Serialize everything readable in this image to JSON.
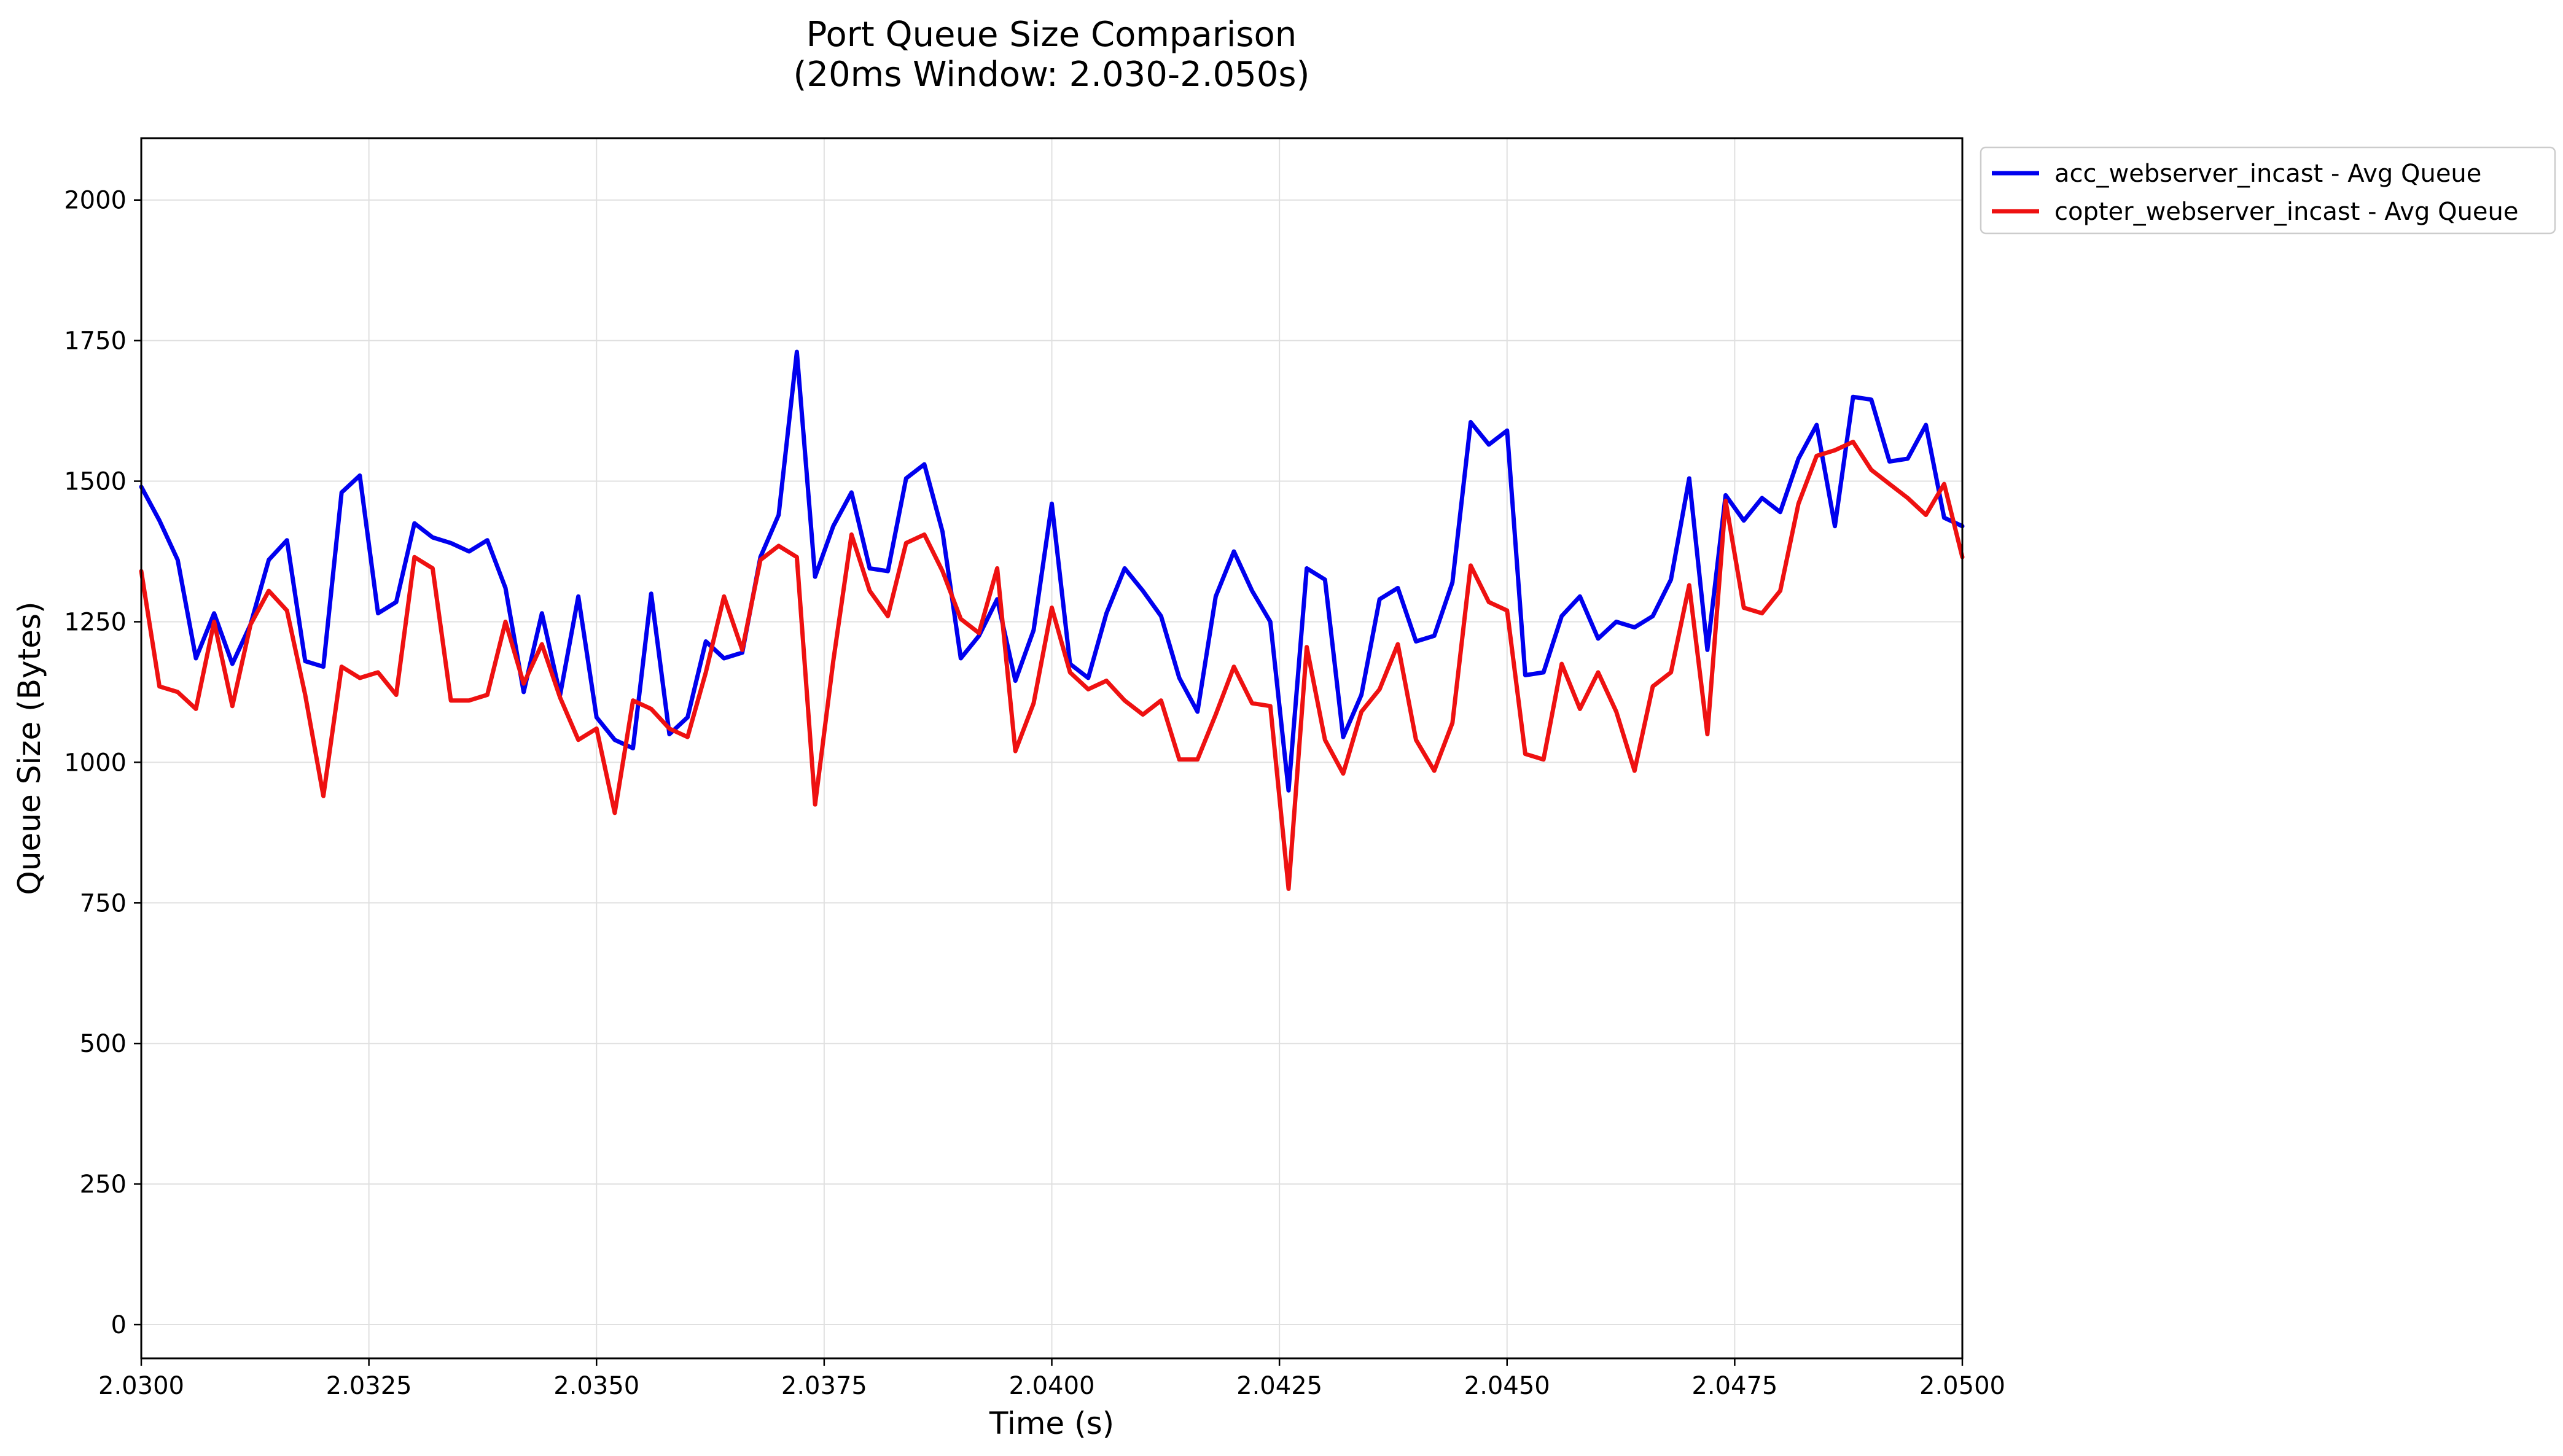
{
  "chart_data": {
    "type": "line",
    "title": "Port Queue Size Comparison",
    "subtitle": "(20ms Window: 2.030-2.050s)",
    "xlabel": "Time (s)",
    "ylabel": "Queue Size (Bytes)",
    "xlim": [
      2.03,
      2.05
    ],
    "ylim": [
      -60,
      2110
    ],
    "x_ticks": [
      "2.0300",
      "2.0325",
      "2.0350",
      "2.0375",
      "2.0400",
      "2.0425",
      "2.0450",
      "2.0475",
      "2.0500"
    ],
    "y_ticks": [
      "0",
      "250",
      "500",
      "750",
      "1000",
      "1250",
      "1500",
      "1750",
      "2000"
    ],
    "grid": true,
    "legend_position": "outside-top-right",
    "series": [
      {
        "name": "acc_webserver_incast - Avg Queue",
        "color": "#0000ee",
        "points": [
          [
            2.03,
            1490
          ],
          [
            2.0302,
            1430
          ],
          [
            2.0304,
            1360
          ],
          [
            2.0306,
            1185
          ],
          [
            2.0308,
            1265
          ],
          [
            2.031,
            1175
          ],
          [
            2.0312,
            1245
          ],
          [
            2.0314,
            1360
          ],
          [
            2.0316,
            1395
          ],
          [
            2.0318,
            1180
          ],
          [
            2.032,
            1170
          ],
          [
            2.0322,
            1480
          ],
          [
            2.0324,
            1510
          ],
          [
            2.0326,
            1265
          ],
          [
            2.0328,
            1285
          ],
          [
            2.033,
            1425
          ],
          [
            2.0332,
            1400
          ],
          [
            2.0334,
            1390
          ],
          [
            2.0336,
            1375
          ],
          [
            2.0338,
            1395
          ],
          [
            2.034,
            1310
          ],
          [
            2.0342,
            1125
          ],
          [
            2.0344,
            1265
          ],
          [
            2.0346,
            1120
          ],
          [
            2.0348,
            1295
          ],
          [
            2.035,
            1080
          ],
          [
            2.0352,
            1040
          ],
          [
            2.0354,
            1025
          ],
          [
            2.0356,
            1300
          ],
          [
            2.0358,
            1050
          ],
          [
            2.036,
            1080
          ],
          [
            2.0362,
            1215
          ],
          [
            2.0364,
            1185
          ],
          [
            2.0366,
            1195
          ],
          [
            2.0368,
            1365
          ],
          [
            2.037,
            1440
          ],
          [
            2.0372,
            1730
          ],
          [
            2.0374,
            1330
          ],
          [
            2.0376,
            1420
          ],
          [
            2.0378,
            1480
          ],
          [
            2.038,
            1345
          ],
          [
            2.0382,
            1340
          ],
          [
            2.0384,
            1505
          ],
          [
            2.0386,
            1530
          ],
          [
            2.0388,
            1410
          ],
          [
            2.039,
            1185
          ],
          [
            2.0392,
            1225
          ],
          [
            2.0394,
            1290
          ],
          [
            2.0396,
            1145
          ],
          [
            2.0398,
            1235
          ],
          [
            2.04,
            1460
          ],
          [
            2.0402,
            1175
          ],
          [
            2.0404,
            1150
          ],
          [
            2.0406,
            1265
          ],
          [
            2.0408,
            1345
          ],
          [
            2.041,
            1305
          ],
          [
            2.0412,
            1260
          ],
          [
            2.0414,
            1150
          ],
          [
            2.0416,
            1090
          ],
          [
            2.0418,
            1295
          ],
          [
            2.042,
            1375
          ],
          [
            2.0422,
            1305
          ],
          [
            2.0424,
            1250
          ],
          [
            2.0426,
            950
          ],
          [
            2.0428,
            1345
          ],
          [
            2.043,
            1325
          ],
          [
            2.0432,
            1045
          ],
          [
            2.0434,
            1120
          ],
          [
            2.0436,
            1290
          ],
          [
            2.0438,
            1310
          ],
          [
            2.044,
            1215
          ],
          [
            2.0442,
            1225
          ],
          [
            2.0444,
            1320
          ],
          [
            2.0446,
            1605
          ],
          [
            2.0448,
            1565
          ],
          [
            2.045,
            1590
          ],
          [
            2.0452,
            1155
          ],
          [
            2.0454,
            1160
          ],
          [
            2.0456,
            1260
          ],
          [
            2.0458,
            1295
          ],
          [
            2.046,
            1220
          ],
          [
            2.0462,
            1250
          ],
          [
            2.0464,
            1240
          ],
          [
            2.0466,
            1260
          ],
          [
            2.0468,
            1325
          ],
          [
            2.047,
            1505
          ],
          [
            2.0472,
            1200
          ],
          [
            2.0474,
            1475
          ],
          [
            2.0476,
            1430
          ],
          [
            2.0478,
            1470
          ],
          [
            2.048,
            1445
          ],
          [
            2.0482,
            1540
          ],
          [
            2.0484,
            1600
          ],
          [
            2.0486,
            1420
          ],
          [
            2.0488,
            1650
          ],
          [
            2.049,
            1645
          ],
          [
            2.0492,
            1535
          ],
          [
            2.0494,
            1540
          ],
          [
            2.0496,
            1600
          ],
          [
            2.0498,
            1435
          ],
          [
            2.05,
            1420
          ]
        ]
      },
      {
        "name": "copter_webserver_incast - Avg Queue",
        "color": "#ee1111",
        "points": [
          [
            2.03,
            1340
          ],
          [
            2.0302,
            1135
          ],
          [
            2.0304,
            1125
          ],
          [
            2.0306,
            1095
          ],
          [
            2.0308,
            1250
          ],
          [
            2.031,
            1100
          ],
          [
            2.0312,
            1245
          ],
          [
            2.0314,
            1305
          ],
          [
            2.0316,
            1270
          ],
          [
            2.0318,
            1120
          ],
          [
            2.032,
            940
          ],
          [
            2.0322,
            1170
          ],
          [
            2.0324,
            1150
          ],
          [
            2.0326,
            1160
          ],
          [
            2.0328,
            1120
          ],
          [
            2.033,
            1365
          ],
          [
            2.0332,
            1345
          ],
          [
            2.0334,
            1110
          ],
          [
            2.0336,
            1110
          ],
          [
            2.0338,
            1120
          ],
          [
            2.034,
            1250
          ],
          [
            2.0342,
            1140
          ],
          [
            2.0344,
            1210
          ],
          [
            2.0346,
            1115
          ],
          [
            2.0348,
            1040
          ],
          [
            2.035,
            1060
          ],
          [
            2.0352,
            910
          ],
          [
            2.0354,
            1110
          ],
          [
            2.0356,
            1095
          ],
          [
            2.0358,
            1060
          ],
          [
            2.036,
            1045
          ],
          [
            2.0362,
            1160
          ],
          [
            2.0364,
            1295
          ],
          [
            2.0366,
            1200
          ],
          [
            2.0368,
            1360
          ],
          [
            2.037,
            1385
          ],
          [
            2.0372,
            1365
          ],
          [
            2.0374,
            925
          ],
          [
            2.0376,
            1180
          ],
          [
            2.0378,
            1405
          ],
          [
            2.038,
            1305
          ],
          [
            2.0382,
            1260
          ],
          [
            2.0384,
            1390
          ],
          [
            2.0386,
            1405
          ],
          [
            2.0388,
            1340
          ],
          [
            2.039,
            1255
          ],
          [
            2.0392,
            1230
          ],
          [
            2.0394,
            1345
          ],
          [
            2.0396,
            1020
          ],
          [
            2.0398,
            1105
          ],
          [
            2.04,
            1275
          ],
          [
            2.0402,
            1160
          ],
          [
            2.0404,
            1130
          ],
          [
            2.0406,
            1145
          ],
          [
            2.0408,
            1110
          ],
          [
            2.041,
            1085
          ],
          [
            2.0412,
            1110
          ],
          [
            2.0414,
            1005
          ],
          [
            2.0416,
            1005
          ],
          [
            2.0418,
            1085
          ],
          [
            2.042,
            1170
          ],
          [
            2.0422,
            1105
          ],
          [
            2.0424,
            1100
          ],
          [
            2.0426,
            775
          ],
          [
            2.0428,
            1205
          ],
          [
            2.043,
            1040
          ],
          [
            2.0432,
            980
          ],
          [
            2.0434,
            1090
          ],
          [
            2.0436,
            1130
          ],
          [
            2.0438,
            1210
          ],
          [
            2.044,
            1040
          ],
          [
            2.0442,
            985
          ],
          [
            2.0444,
            1070
          ],
          [
            2.0446,
            1350
          ],
          [
            2.0448,
            1285
          ],
          [
            2.045,
            1270
          ],
          [
            2.0452,
            1015
          ],
          [
            2.0454,
            1005
          ],
          [
            2.0456,
            1175
          ],
          [
            2.0458,
            1095
          ],
          [
            2.046,
            1160
          ],
          [
            2.0462,
            1090
          ],
          [
            2.0464,
            985
          ],
          [
            2.0466,
            1135
          ],
          [
            2.0468,
            1160
          ],
          [
            2.047,
            1315
          ],
          [
            2.0472,
            1050
          ],
          [
            2.0474,
            1465
          ],
          [
            2.0476,
            1275
          ],
          [
            2.0478,
            1265
          ],
          [
            2.048,
            1305
          ],
          [
            2.0482,
            1460
          ],
          [
            2.0484,
            1545
          ],
          [
            2.0486,
            1555
          ],
          [
            2.0488,
            1570
          ],
          [
            2.049,
            1520
          ],
          [
            2.0492,
            1495
          ],
          [
            2.0494,
            1470
          ],
          [
            2.0496,
            1440
          ],
          [
            2.0498,
            1495
          ],
          [
            2.05,
            1365
          ]
        ]
      }
    ]
  }
}
